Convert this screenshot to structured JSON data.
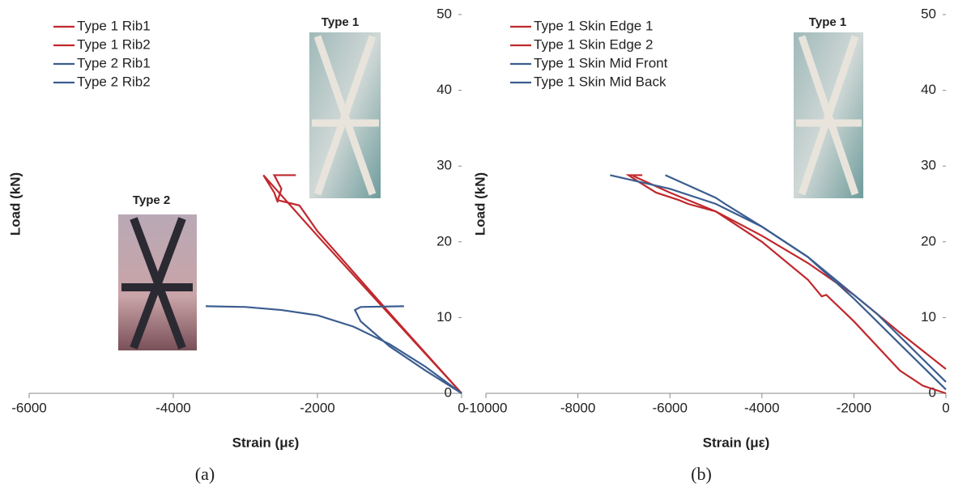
{
  "chart_data": [
    {
      "type": "line",
      "caption": "(a)",
      "xlabel": "Strain (με)",
      "ylabel": "Load (kN)",
      "xlim": [
        -6000,
        0
      ],
      "xticks": [
        -6000,
        -4000,
        -2000,
        0
      ],
      "ylim": [
        0,
        50
      ],
      "yticks": [
        0,
        10,
        20,
        30,
        40,
        50
      ],
      "legend": "upper left",
      "inset_labels": [
        "Type 1",
        "Type 2"
      ],
      "series": [
        {
          "name": "Type 1 Rib1",
          "color": "#c0282d",
          "x": [
            0,
            -1000,
            -2000,
            -2750,
            -2600,
            -2550
          ],
          "values": [
            0,
            10.4,
            20.8,
            28.8,
            26.5,
            25.2
          ]
        },
        {
          "name": "Type 1 Rib2",
          "color": "#c0282d",
          "x": [
            0,
            -1000,
            -2000,
            -2250,
            -2550,
            -2500,
            -2600,
            -2300
          ],
          "values": [
            0,
            10.6,
            21.4,
            24.8,
            25.5,
            27,
            28.8,
            28.8
          ]
        },
        {
          "name": "Type 2 Rib1",
          "color": "#3b5d8f",
          "x": [
            0,
            -500,
            -1000,
            -1400,
            -1480,
            -1400,
            -800
          ],
          "values": [
            0,
            3,
            6.2,
            9.5,
            11,
            11.4,
            11.5
          ]
        },
        {
          "name": "Type 2 Rib2",
          "color": "#3b5d8f",
          "x": [
            0,
            -500,
            -1000,
            -1500,
            -2000,
            -2500,
            -3000,
            -3550
          ],
          "values": [
            0,
            3.5,
            6.5,
            8.8,
            10.3,
            11,
            11.4,
            11.5
          ]
        }
      ]
    },
    {
      "type": "line",
      "caption": "(b)",
      "xlabel": "Strain (με)",
      "ylabel": "Load (kN)",
      "xlim": [
        -10000,
        0
      ],
      "xticks": [
        -10000,
        -8000,
        -6000,
        -4000,
        -2000,
        0
      ],
      "ylim": [
        0,
        50
      ],
      "yticks": [
        0,
        10,
        20,
        30,
        40,
        50
      ],
      "legend": "upper left",
      "inset_labels": [
        "Type 1"
      ],
      "series": [
        {
          "name": "Type 1 Skin Edge 1",
          "color": "#c0282d",
          "x": [
            0,
            -500,
            -1000,
            -2000,
            -2600,
            -2700,
            -3000,
            -4000,
            -5000,
            -5600,
            -5800,
            -6300,
            -6700,
            -6900,
            -6600
          ],
          "values": [
            0,
            1,
            3,
            9.5,
            13,
            12.8,
            15,
            20,
            24,
            25,
            25.5,
            26.5,
            28,
            28.8,
            28.8
          ]
        },
        {
          "name": "Type 1 Skin Edge 2",
          "color": "#c0282d",
          "x": [
            0,
            -1000,
            -2000,
            -3000,
            -4000,
            -5000,
            -6000,
            -6800
          ],
          "values": [
            3.2,
            8,
            13,
            17.2,
            20.8,
            24,
            26.5,
            28.7
          ]
        },
        {
          "name": "Type 1 Skin Mid Front",
          "color": "#3b5d8f",
          "x": [
            0,
            -500,
            -1000,
            -1500,
            -2000,
            -3000,
            -4000,
            -5000,
            -6000,
            -7300
          ],
          "values": [
            1.5,
            4.5,
            7.5,
            10.5,
            13,
            18,
            22,
            25,
            27,
            28.8
          ]
        },
        {
          "name": "Type 1 Skin Mid Back",
          "color": "#3b5d8f",
          "x": [
            0,
            -1000,
            -2000,
            -3000,
            -4000,
            -4800,
            -5000,
            -6100
          ],
          "values": [
            0.5,
            6.5,
            12.5,
            18,
            22,
            25,
            25.8,
            28.8
          ]
        }
      ]
    }
  ]
}
